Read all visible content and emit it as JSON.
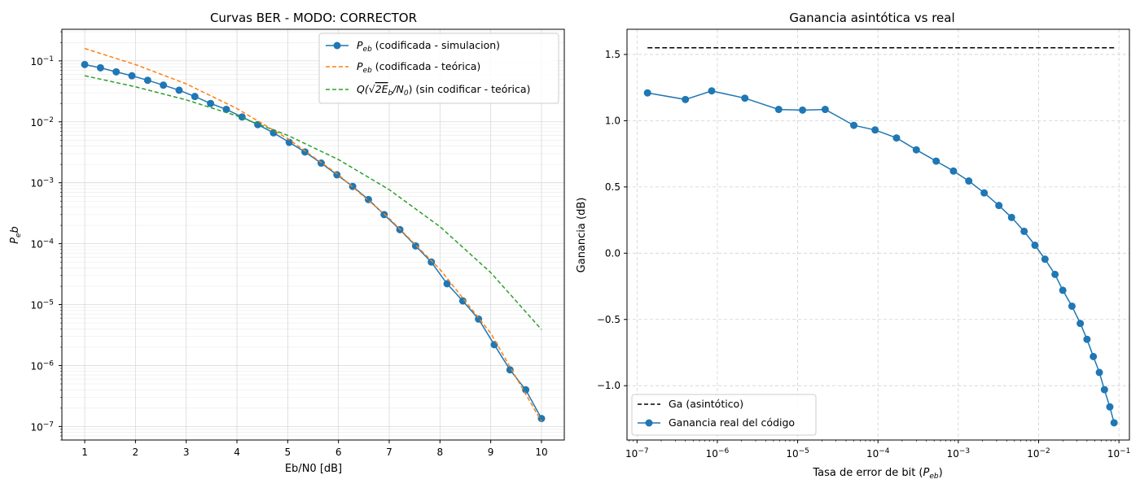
{
  "chart_data": [
    {
      "type": "line",
      "title": "Curvas BER - MODO: CORRECTOR",
      "xlabel": "Eb/N0 [dB]",
      "ylabel": "P_e b",
      "yscale": "log",
      "xlim": [
        0.55,
        10.45
      ],
      "ylim": [
        6e-08,
        0.33
      ],
      "xticks": [
        "1",
        "2",
        "3",
        "4",
        "5",
        "6",
        "7",
        "8",
        "9",
        "10"
      ],
      "yticks": [
        {
          "value": 1e-07,
          "label": "10",
          "exp": "−7"
        },
        {
          "value": 1e-06,
          "label": "10",
          "exp": "−6"
        },
        {
          "value": 1e-05,
          "label": "10",
          "exp": "−5"
        },
        {
          "value": 0.0001,
          "label": "10",
          "exp": "−4"
        },
        {
          "value": 0.001,
          "label": "10",
          "exp": "−3"
        },
        {
          "value": 0.01,
          "label": "10",
          "exp": "−2"
        },
        {
          "value": 0.1,
          "label": "10",
          "exp": "−1"
        }
      ],
      "grid": "both (major and minor)",
      "legend_position": "top-right",
      "series": [
        {
          "name": "P_eb (codificada - simulacion)",
          "legend_prefix": "P",
          "legend_sub": "eb",
          "legend_rest": " (codificada - simulacion)",
          "style": "solid-marker",
          "color": "#1f77b4",
          "x": [
            1.0,
            1.31,
            1.62,
            1.93,
            2.24,
            2.55,
            2.86,
            3.17,
            3.48,
            3.79,
            4.1,
            4.41,
            4.72,
            5.03,
            5.34,
            5.66,
            5.97,
            6.28,
            6.59,
            6.9,
            7.21,
            7.52,
            7.83,
            8.14,
            8.45,
            8.76,
            9.07,
            9.38,
            9.69,
            10.0
          ],
          "y": [
            0.087,
            0.077,
            0.066,
            0.057,
            0.048,
            0.04,
            0.033,
            0.026,
            0.02,
            0.016,
            0.012,
            0.009,
            0.0066,
            0.0046,
            0.0032,
            0.0021,
            0.00135,
            0.00087,
            0.00053,
            0.0003,
            0.00017,
            9.2e-05,
            5e-05,
            2.2e-05,
            1.15e-05,
            5.8e-06,
            2.2e-06,
            8.5e-07,
            4e-07,
            1.35e-07
          ]
        },
        {
          "name": "P_eb (codificada - teórica)",
          "legend_prefix": "P",
          "legend_sub": "eb",
          "legend_rest": " (codificada - teórica)",
          "style": "dashed",
          "color": "#ff7f0e",
          "x": [
            1,
            2,
            3,
            4,
            5,
            6,
            7,
            8,
            9,
            10
          ],
          "y": [
            0.16,
            0.087,
            0.042,
            0.0165,
            0.0053,
            0.00135,
            0.00026,
            3.8e-05,
            3.4e-06,
            1.2e-07
          ]
        },
        {
          "name": "Q(√(2E_b/N_0)) (sin codificar - teórica)",
          "legend_prefix": "Q(",
          "legend_sqrt": "2E",
          "legend_sub": "b",
          "legend_mid": "/N",
          "legend_sub2": "0",
          "legend_rest": ") (sin codificar - teórica)",
          "style": "dashed",
          "color": "#2ca02c",
          "x": [
            1,
            2,
            3,
            4,
            5,
            6,
            7,
            8,
            9,
            10
          ],
          "y": [
            0.057,
            0.0376,
            0.0229,
            0.0125,
            0.006,
            0.0024,
            0.00077,
            0.00019,
            3.36e-05,
            3.9e-06
          ]
        }
      ]
    },
    {
      "type": "line",
      "title": "Ganancia asintótica vs real",
      "xlabel_prefix": "Tasa de error de bit (",
      "xlabel_var": "P",
      "xlabel_sub": "eb",
      "xlabel_suffix": ")",
      "ylabel": "Ganancia (dB)",
      "xscale": "log",
      "xlim": [
        7.5e-08,
        0.135
      ],
      "ylim": [
        -1.41,
        1.69
      ],
      "xticks": [
        {
          "value": 1e-07,
          "label": "10",
          "exp": "−7"
        },
        {
          "value": 1e-06,
          "label": "10",
          "exp": "−6"
        },
        {
          "value": 1e-05,
          "label": "10",
          "exp": "−5"
        },
        {
          "value": 0.0001,
          "label": "10",
          "exp": "−4"
        },
        {
          "value": 0.001,
          "label": "10",
          "exp": "−3"
        },
        {
          "value": 0.01,
          "label": "10",
          "exp": "−2"
        },
        {
          "value": 0.1,
          "label": "10",
          "exp": "−1"
        }
      ],
      "yticks": [
        "−1.0",
        "−0.5",
        "0.0",
        "0.5",
        "1.0",
        "1.5"
      ],
      "ytick_values": [
        -1.0,
        -0.5,
        0.0,
        0.5,
        1.0,
        1.5
      ],
      "grid": "major dashed",
      "legend_position": "bottom-left",
      "series": [
        {
          "name": "Ga (asintótico)",
          "style": "dashed",
          "color": "#000000",
          "x": [
            1.35e-07,
            0.087
          ],
          "y": [
            1.55,
            1.55
          ]
        },
        {
          "name": "Ganancia real del código",
          "style": "solid-marker",
          "color": "#1f77b4",
          "x": [
            1.35e-07,
            4e-07,
            8.5e-07,
            2.2e-06,
            5.8e-06,
            1.15e-05,
            2.2e-05,
            5e-05,
            9.2e-05,
            0.00017,
            0.0003,
            0.00053,
            0.00087,
            0.00135,
            0.0021,
            0.0032,
            0.0046,
            0.0066,
            0.009,
            0.012,
            0.016,
            0.02,
            0.026,
            0.033,
            0.04,
            0.048,
            0.057,
            0.066,
            0.077,
            0.087
          ],
          "y": [
            1.21,
            1.16,
            1.225,
            1.17,
            1.085,
            1.08,
            1.085,
            0.965,
            0.93,
            0.87,
            0.78,
            0.695,
            0.62,
            0.545,
            0.455,
            0.36,
            0.27,
            0.165,
            0.06,
            -0.045,
            -0.16,
            -0.28,
            -0.4,
            -0.53,
            -0.65,
            -0.78,
            -0.9,
            -1.03,
            -1.16,
            -1.28
          ]
        }
      ]
    }
  ]
}
